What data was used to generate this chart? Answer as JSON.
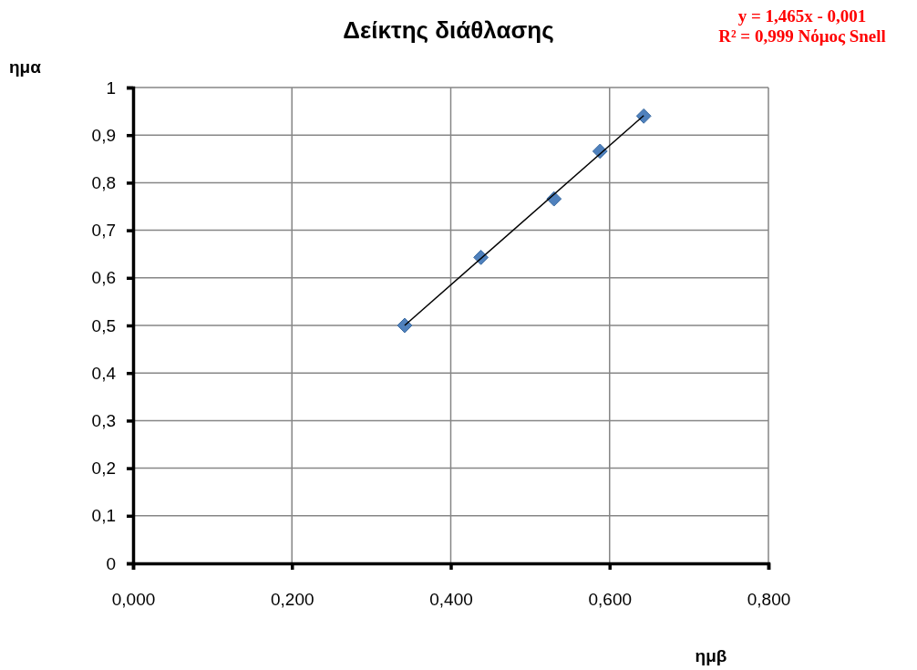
{
  "chart_data": {
    "type": "scatter",
    "title": "Δείκτης διάθλασης",
    "xlabel": "ημβ",
    "ylabel": "ημα",
    "annotations": [
      "y = 1,465x - 0,001",
      "R² = 0,999 Νόμος Snell"
    ],
    "xlim": [
      0,
      0.8
    ],
    "xticks": [
      {
        "value": 0,
        "label": "0,000"
      },
      {
        "value": 0.2,
        "label": "0,200"
      },
      {
        "value": 0.4,
        "label": "0,400"
      },
      {
        "value": 0.6,
        "label": "0,600"
      },
      {
        "value": 0.8,
        "label": "0,800"
      }
    ],
    "ylim": [
      0,
      1
    ],
    "yticks": [
      0,
      {
        "value": 0.1,
        "label": "0,1"
      },
      {
        "value": 0.2,
        "label": "0,2"
      },
      {
        "value": 0.3,
        "label": "0,3"
      },
      {
        "value": 0.4,
        "label": "0,4"
      },
      {
        "value": 0.5,
        "label": "0,5"
      },
      {
        "value": 0.6,
        "label": "0,6"
      },
      {
        "value": 0.7,
        "label": "0,7"
      },
      {
        "value": 0.8,
        "label": "0,8"
      },
      {
        "value": 0.9,
        "label": "0,9"
      },
      1
    ],
    "grid": true,
    "series": [
      {
        "marker": "diamond",
        "color": "#4f81bd",
        "x": [
          0.342,
          0.438,
          0.53,
          0.588,
          0.643
        ],
        "values": [
          0.5,
          0.643,
          0.766,
          0.866,
          0.94
        ]
      },
      {
        "type": "line",
        "color": "#000000",
        "line_style": "solid",
        "x": [
          0.342,
          0.643
        ],
        "values": [
          0.5,
          0.941
        ]
      }
    ]
  }
}
